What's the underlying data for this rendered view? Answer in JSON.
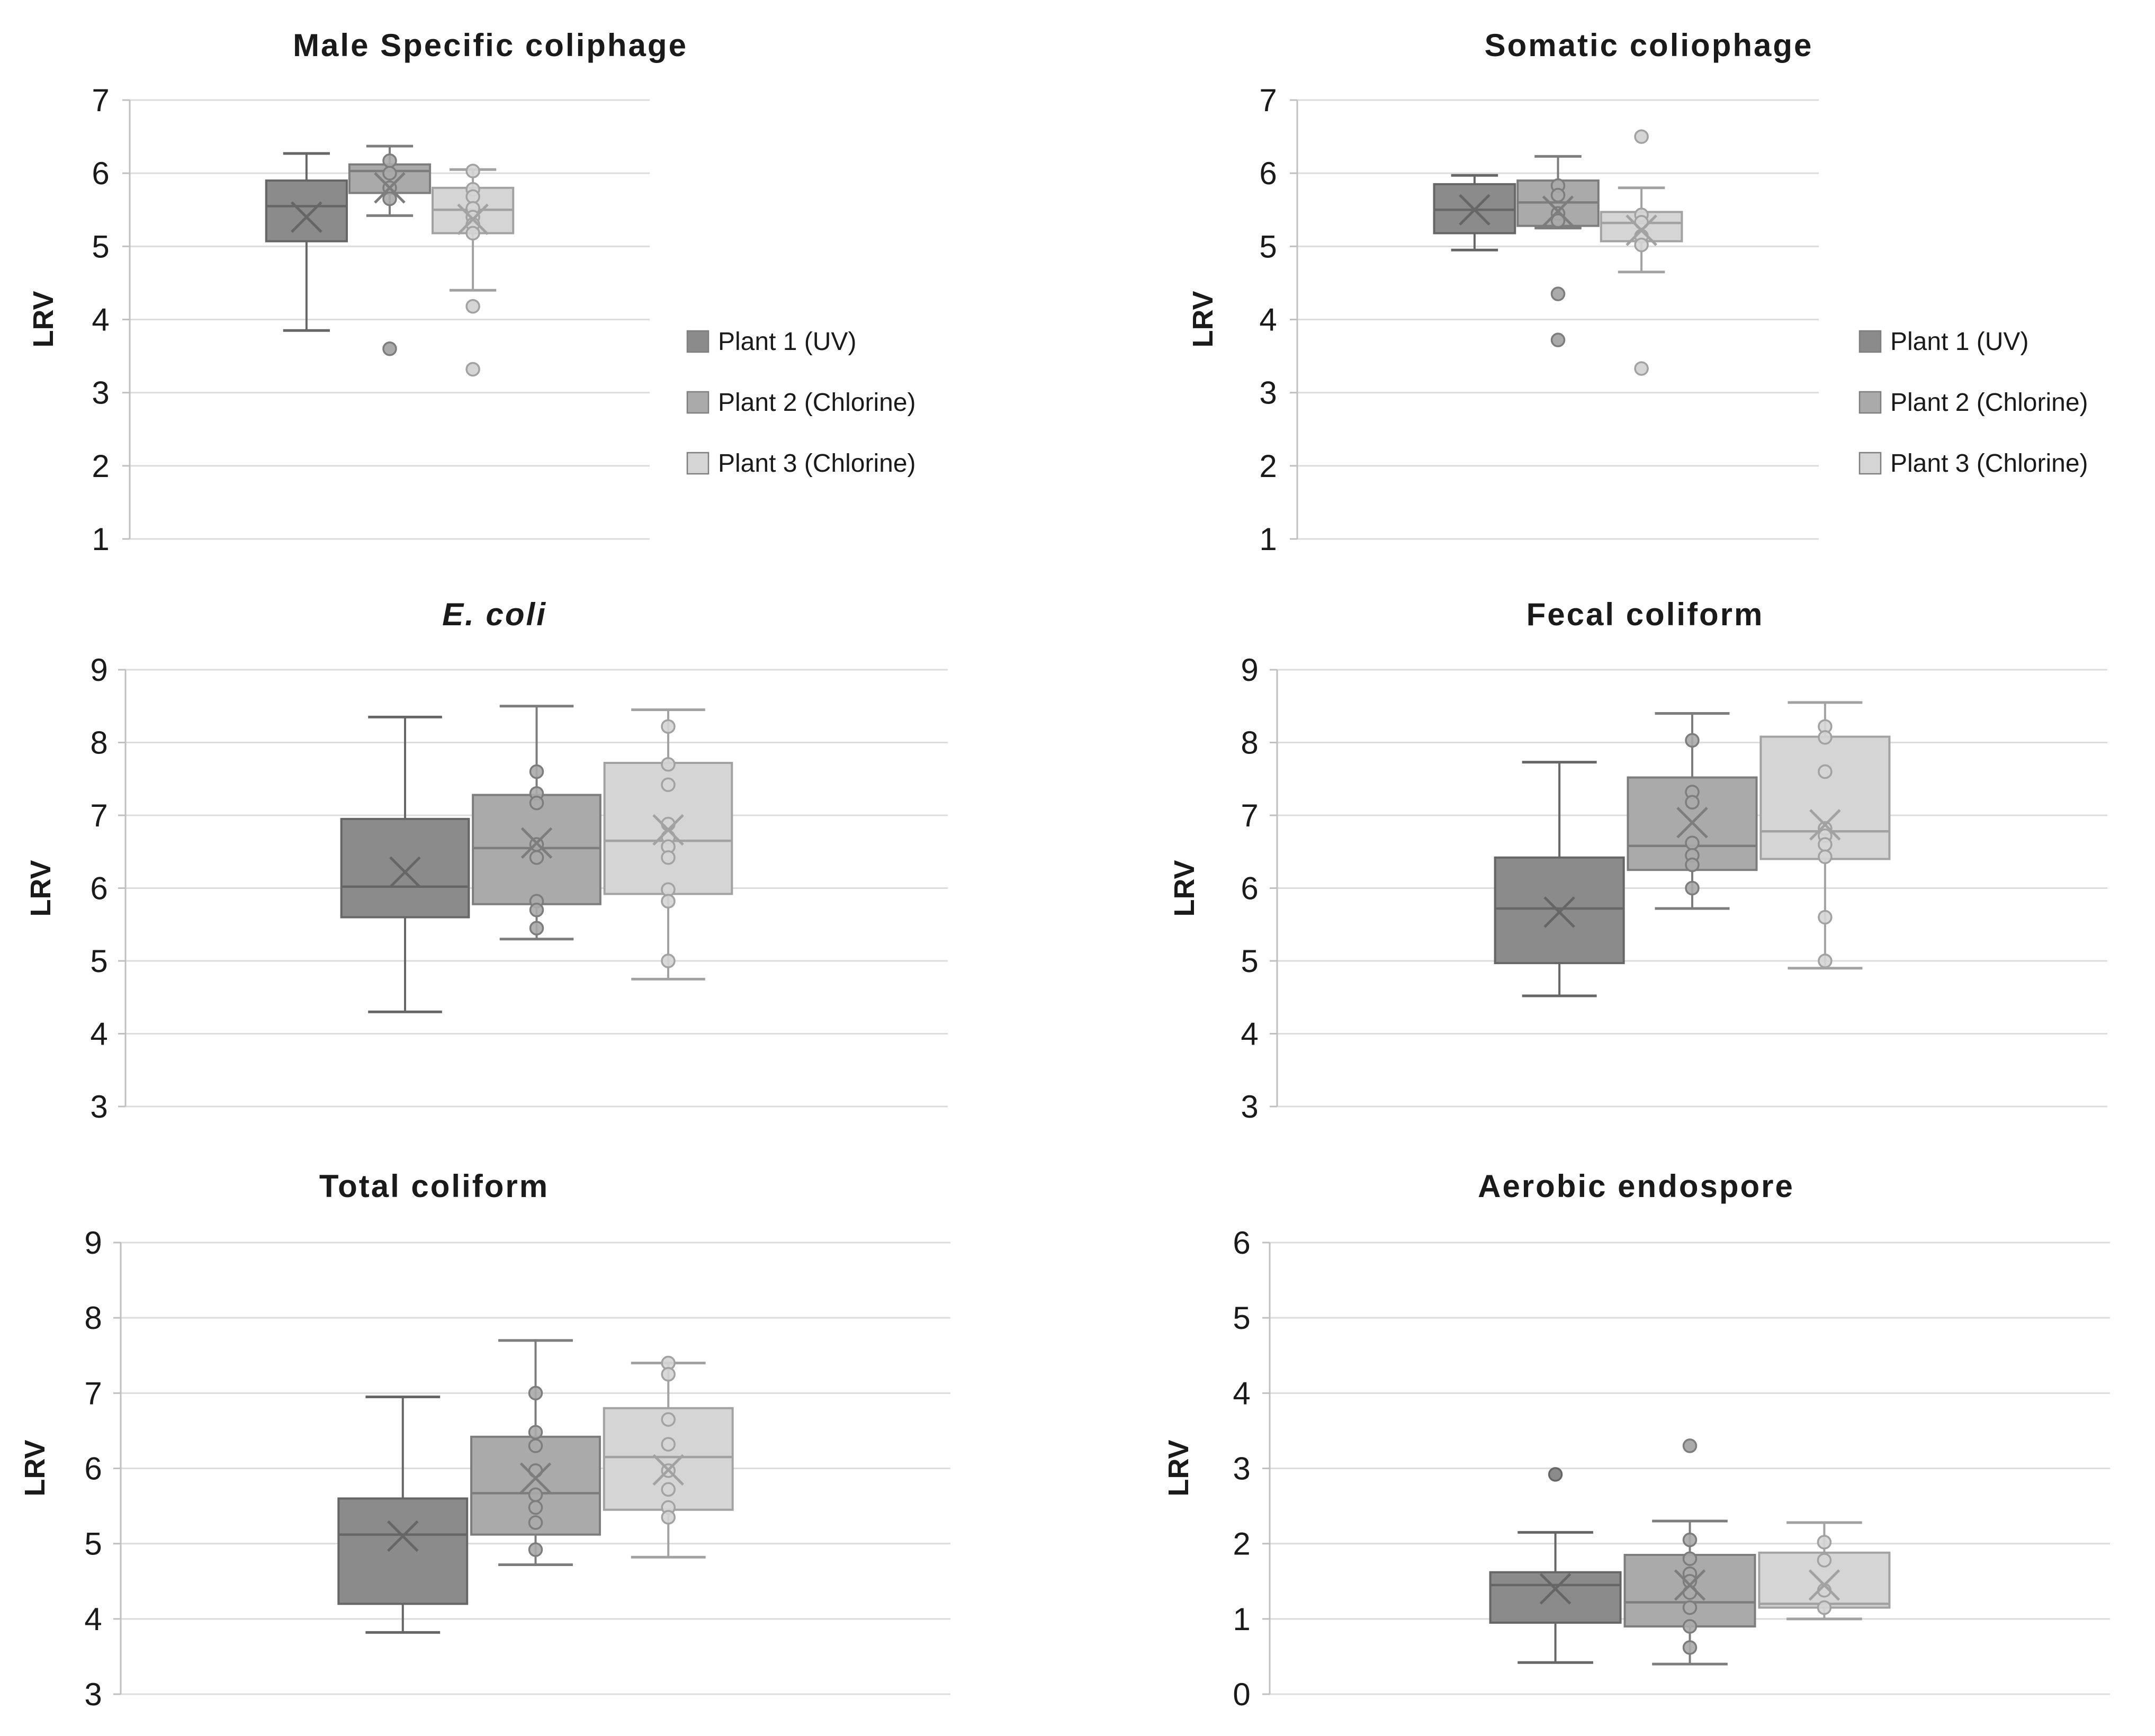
{
  "figure": {
    "ylabel": "LRV"
  },
  "colors": {
    "gridline": "#dcdcdc",
    "axis": "#c0c0c0",
    "text": "#1a1a1a",
    "background": "#ffffff"
  },
  "series_styles": [
    {
      "name": "Plant 1 (UV)",
      "fill": "#8b8b8b",
      "stroke": "#666666"
    },
    {
      "name": "Plant 2 (Chlorine)",
      "fill": "#aaaaaa",
      "stroke": "#7d7d7d"
    },
    {
      "name": "Plant 3 (Chlorine)",
      "fill": "#d5d5d5",
      "stroke": "#a2a2a2"
    }
  ],
  "legend": {
    "items": [
      {
        "label": "Plant 1 (UV)"
      },
      {
        "label": "Plant 2 (Chlorine)"
      },
      {
        "label": "Plant 3 (Chlorine)"
      }
    ]
  },
  "chart_data": [
    {
      "type": "box",
      "title": "Male Specific coliphage",
      "ylabel": "LRV",
      "ylim": [
        1,
        7
      ],
      "yticks": [
        7,
        6,
        5,
        4,
        3,
        2,
        1
      ],
      "grid": true,
      "legend_position": "right",
      "series": [
        {
          "name": "Plant 1 (UV)",
          "whisker_low": 3.85,
          "q1": 5.07,
          "median": 5.55,
          "mean": 5.4,
          "q3": 5.9,
          "whisker_high": 6.27,
          "points": [],
          "outliers": []
        },
        {
          "name": "Plant 2 (Chlorine)",
          "whisker_low": 5.42,
          "q1": 5.73,
          "median": 6.03,
          "mean": 5.8,
          "q3": 6.12,
          "whisker_high": 6.37,
          "points": [
            6.17,
            6.0,
            5.8,
            5.65
          ],
          "outliers": [
            3.6
          ]
        },
        {
          "name": "Plant 3 (Chlorine)",
          "whisker_low": 4.4,
          "q1": 5.18,
          "median": 5.5,
          "mean": 5.37,
          "q3": 5.8,
          "whisker_high": 6.05,
          "points": [
            6.03,
            5.78,
            5.68,
            5.52,
            5.4,
            5.3,
            5.18
          ],
          "outliers": [
            4.18,
            3.32
          ]
        }
      ]
    },
    {
      "type": "box",
      "title": "Somatic coliophage",
      "ylabel": "LRV",
      "ylim": [
        1,
        7
      ],
      "yticks": [
        7,
        6,
        5,
        4,
        3,
        2,
        1
      ],
      "grid": true,
      "legend_position": "right",
      "series": [
        {
          "name": "Plant 1 (UV)",
          "whisker_low": 4.95,
          "q1": 5.18,
          "median": 5.5,
          "mean": 5.5,
          "q3": 5.85,
          "whisker_high": 5.97,
          "points": [],
          "outliers": []
        },
        {
          "name": "Plant 2 (Chlorine)",
          "whisker_low": 5.25,
          "q1": 5.28,
          "median": 5.6,
          "mean": 5.48,
          "q3": 5.9,
          "whisker_high": 6.23,
          "points": [
            5.83,
            5.7,
            5.45,
            5.35
          ],
          "outliers": [
            4.35,
            3.72
          ]
        },
        {
          "name": "Plant 3 (Chlorine)",
          "whisker_low": 4.65,
          "q1": 5.07,
          "median": 5.32,
          "mean": 5.22,
          "q3": 5.47,
          "whisker_high": 5.8,
          "points": [
            5.43,
            5.33,
            5.14,
            5.02
          ],
          "outliers": [
            6.5,
            3.33
          ]
        }
      ]
    },
    {
      "type": "box",
      "title": "E. coli",
      "title_italic": true,
      "ylabel": "LRV",
      "ylim": [
        3,
        9
      ],
      "yticks": [
        9,
        8,
        7,
        6,
        5,
        4,
        3
      ],
      "grid": true,
      "legend_position": "none",
      "series": [
        {
          "name": "Plant 1 (UV)",
          "whisker_low": 4.3,
          "q1": 5.6,
          "median": 6.02,
          "mean": 6.22,
          "q3": 6.95,
          "whisker_high": 8.35,
          "points": [],
          "outliers": []
        },
        {
          "name": "Plant 2 (Chlorine)",
          "whisker_low": 5.3,
          "q1": 5.78,
          "median": 6.55,
          "mean": 6.62,
          "q3": 7.28,
          "whisker_high": 8.5,
          "points": [
            7.6,
            7.3,
            7.17,
            6.6,
            6.42,
            5.82,
            5.7,
            5.45
          ],
          "outliers": []
        },
        {
          "name": "Plant 3 (Chlorine)",
          "whisker_low": 4.75,
          "q1": 5.92,
          "median": 6.65,
          "mean": 6.8,
          "q3": 7.72,
          "whisker_high": 8.45,
          "points": [
            8.22,
            7.7,
            7.42,
            6.88,
            6.7,
            6.57,
            6.42,
            5.98,
            5.82,
            5.0
          ],
          "outliers": []
        }
      ]
    },
    {
      "type": "box",
      "title": "Fecal coliform",
      "ylabel": "LRV",
      "ylim": [
        3,
        9
      ],
      "yticks": [
        9,
        8,
        7,
        6,
        5,
        4,
        3
      ],
      "grid": true,
      "legend_position": "none",
      "series": [
        {
          "name": "Plant 1 (UV)",
          "whisker_low": 4.52,
          "q1": 4.97,
          "median": 5.72,
          "mean": 5.67,
          "q3": 6.42,
          "whisker_high": 7.73,
          "points": [],
          "outliers": []
        },
        {
          "name": "Plant 2 (Chlorine)",
          "whisker_low": 5.72,
          "q1": 6.25,
          "median": 6.58,
          "mean": 6.9,
          "q3": 7.52,
          "whisker_high": 8.4,
          "points": [
            8.03,
            7.32,
            7.18,
            6.62,
            6.45,
            6.32,
            6.0
          ],
          "outliers": []
        },
        {
          "name": "Plant 3 (Chlorine)",
          "whisker_low": 4.9,
          "q1": 6.4,
          "median": 6.78,
          "mean": 6.87,
          "q3": 8.08,
          "whisker_high": 8.55,
          "points": [
            8.22,
            8.07,
            7.6,
            6.82,
            6.72,
            6.6,
            6.43,
            5.6,
            5.0
          ],
          "outliers": []
        }
      ]
    },
    {
      "type": "box",
      "title": "Total coliform",
      "ylabel": "LRV",
      "ylim": [
        3,
        9
      ],
      "yticks": [
        9,
        8,
        7,
        6,
        5,
        4,
        3
      ],
      "grid": true,
      "legend_position": "none",
      "series": [
        {
          "name": "Plant 1 (UV)",
          "whisker_low": 3.82,
          "q1": 4.2,
          "median": 5.12,
          "mean": 5.1,
          "q3": 5.6,
          "whisker_high": 6.95,
          "points": [],
          "outliers": []
        },
        {
          "name": "Plant 2 (Chlorine)",
          "whisker_low": 4.72,
          "q1": 5.12,
          "median": 5.67,
          "mean": 5.87,
          "q3": 6.42,
          "whisker_high": 7.7,
          "points": [
            7.0,
            6.48,
            6.3,
            5.97,
            5.65,
            5.48,
            5.28,
            4.92
          ],
          "outliers": []
        },
        {
          "name": "Plant 3 (Chlorine)",
          "whisker_low": 4.82,
          "q1": 5.45,
          "median": 6.15,
          "mean": 5.98,
          "q3": 6.8,
          "whisker_high": 7.4,
          "points": [
            7.4,
            7.25,
            6.65,
            6.32,
            5.97,
            5.72,
            5.48,
            5.35
          ],
          "outliers": []
        }
      ]
    },
    {
      "type": "box",
      "title": "Aerobic endospore",
      "ylabel": "LRV",
      "ylim": [
        0,
        6
      ],
      "yticks": [
        6,
        5,
        4,
        3,
        2,
        1,
        0
      ],
      "grid": true,
      "legend_position": "none",
      "series": [
        {
          "name": "Plant 1 (UV)",
          "whisker_low": 0.42,
          "q1": 0.95,
          "median": 1.45,
          "mean": 1.4,
          "q3": 1.62,
          "whisker_high": 2.15,
          "points": [],
          "outliers": [
            2.92
          ]
        },
        {
          "name": "Plant 2 (Chlorine)",
          "whisker_low": 0.4,
          "q1": 0.9,
          "median": 1.22,
          "mean": 1.45,
          "q3": 1.85,
          "whisker_high": 2.3,
          "points": [
            2.05,
            1.8,
            1.6,
            1.5,
            1.35,
            1.15,
            0.9,
            0.62
          ],
          "outliers": [
            3.3
          ]
        },
        {
          "name": "Plant 3 (Chlorine)",
          "whisker_low": 1.0,
          "q1": 1.15,
          "median": 1.2,
          "mean": 1.45,
          "q3": 1.88,
          "whisker_high": 2.28,
          "points": [
            2.02,
            1.78,
            1.38,
            1.15
          ],
          "outliers": []
        }
      ]
    }
  ]
}
